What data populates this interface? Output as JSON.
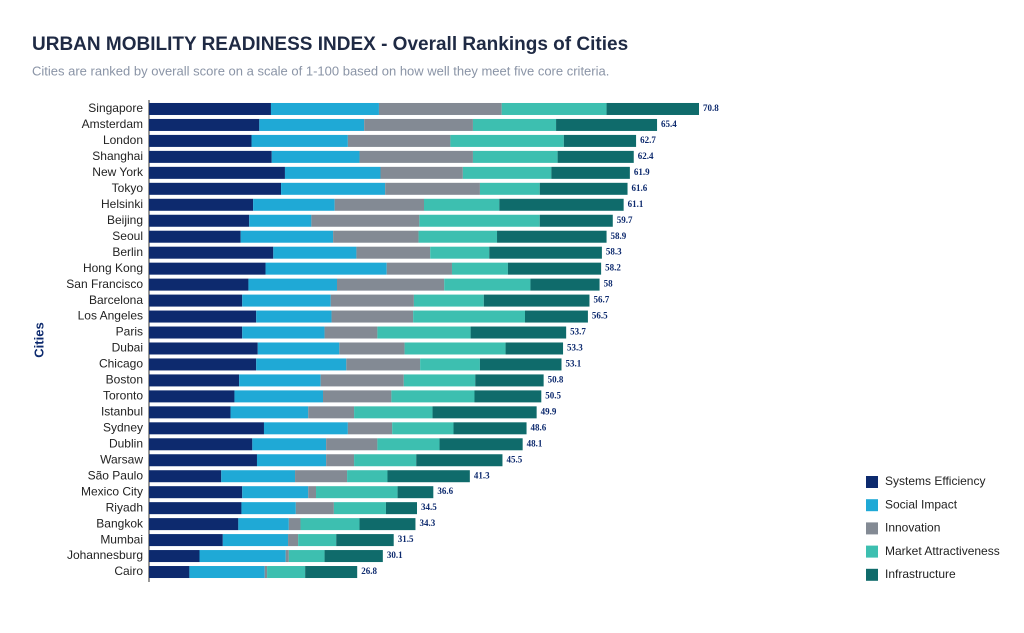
{
  "chart_data": {
    "type": "stacked_hbar",
    "title": "URBAN MOBILITY READINESS INDEX  - Overall Rankings of Cities",
    "subtitle": "Cities are ranked by overall score on a scale of 1-100 based on how well they meet five core criteria.",
    "y_label": "Cities",
    "legend": "bottom-right",
    "categories": [
      "Singapore",
      "Amsterdam",
      "London",
      "Shanghai",
      "New York",
      "Tokyo",
      "Helsinki",
      "Beijing",
      "Seoul",
      "Berlin",
      "Hong Kong",
      "San Francisco",
      "Barcelona",
      "Los Angeles",
      "Paris",
      "Dubai",
      "Chicago",
      "Boston",
      "Toronto",
      "Istanbul",
      "Sydney",
      "Dublin",
      "Warsaw",
      "São Paulo",
      "Mexico City",
      "Riyadh",
      "Bangkok",
      "Mumbai",
      "Johannesburg",
      "Cairo"
    ],
    "totals": [
      70.8,
      65.4,
      62.7,
      62.4,
      61.9,
      61.6,
      61.1,
      59.7,
      58.9,
      58.3,
      58.2,
      58,
      56.7,
      56.5,
      53.7,
      53.3,
      53.1,
      50.8,
      50.5,
      49.9,
      48.6,
      48.1,
      45.5,
      41.3,
      36.6,
      34.5,
      34.3,
      31.5,
      30.1,
      26.8
    ],
    "series": [
      {
        "name": "Systems Efficiency",
        "color": "#0d2a6e",
        "values": [
          15.7,
          14.2,
          13.2,
          15.8,
          17.5,
          17.0,
          13.4,
          12.9,
          11.8,
          16.0,
          15.0,
          12.8,
          12.0,
          13.8,
          12.0,
          14.0,
          13.8,
          11.6,
          11.0,
          10.5,
          14.8,
          13.3,
          13.9,
          9.3,
          12.0,
          11.9,
          11.5,
          9.5,
          6.5,
          5.2
        ]
      },
      {
        "name": "Social Impact",
        "color": "#1fa9d6",
        "values": [
          13.9,
          13.5,
          12.4,
          11.3,
          12.3,
          13.4,
          10.5,
          8.0,
          11.9,
          10.7,
          15.6,
          11.4,
          11.4,
          9.7,
          10.6,
          10.5,
          11.6,
          10.5,
          11.4,
          10.0,
          10.8,
          9.5,
          8.9,
          9.5,
          8.5,
          7.0,
          6.5,
          8.4,
          11.1,
          9.7
        ]
      },
      {
        "name": "Innovation",
        "color": "#838a94",
        "values": [
          15.8,
          14.0,
          13.2,
          14.6,
          10.6,
          12.2,
          11.5,
          13.9,
          11.0,
          9.5,
          8.4,
          13.8,
          10.7,
          10.5,
          6.8,
          8.4,
          9.5,
          10.7,
          8.8,
          5.9,
          5.7,
          6.6,
          3.6,
          6.7,
          1.0,
          4.9,
          1.5,
          1.3,
          0.4,
          0.3
        ]
      },
      {
        "name": "Market Attractiveness",
        "color": "#3dbfb0",
        "values": [
          13.5,
          10.7,
          14.6,
          10.9,
          11.4,
          7.7,
          9.7,
          15.5,
          10.1,
          7.6,
          7.2,
          11.1,
          9.0,
          14.4,
          12.0,
          13.0,
          7.7,
          9.2,
          10.7,
          10.1,
          7.9,
          8.0,
          8.0,
          5.2,
          10.5,
          6.7,
          7.6,
          4.9,
          4.6,
          4.9
        ]
      },
      {
        "name": "Infrastructure",
        "color": "#0f6b6b",
        "values": [
          11.9,
          13.0,
          9.3,
          9.8,
          10.1,
          11.3,
          16.0,
          9.4,
          14.1,
          14.5,
          12.0,
          8.9,
          13.6,
          8.1,
          12.3,
          7.4,
          10.5,
          8.8,
          8.6,
          13.4,
          9.4,
          10.7,
          11.1,
          10.6,
          4.6,
          4.0,
          7.2,
          7.4,
          7.5,
          6.7
        ]
      }
    ]
  }
}
